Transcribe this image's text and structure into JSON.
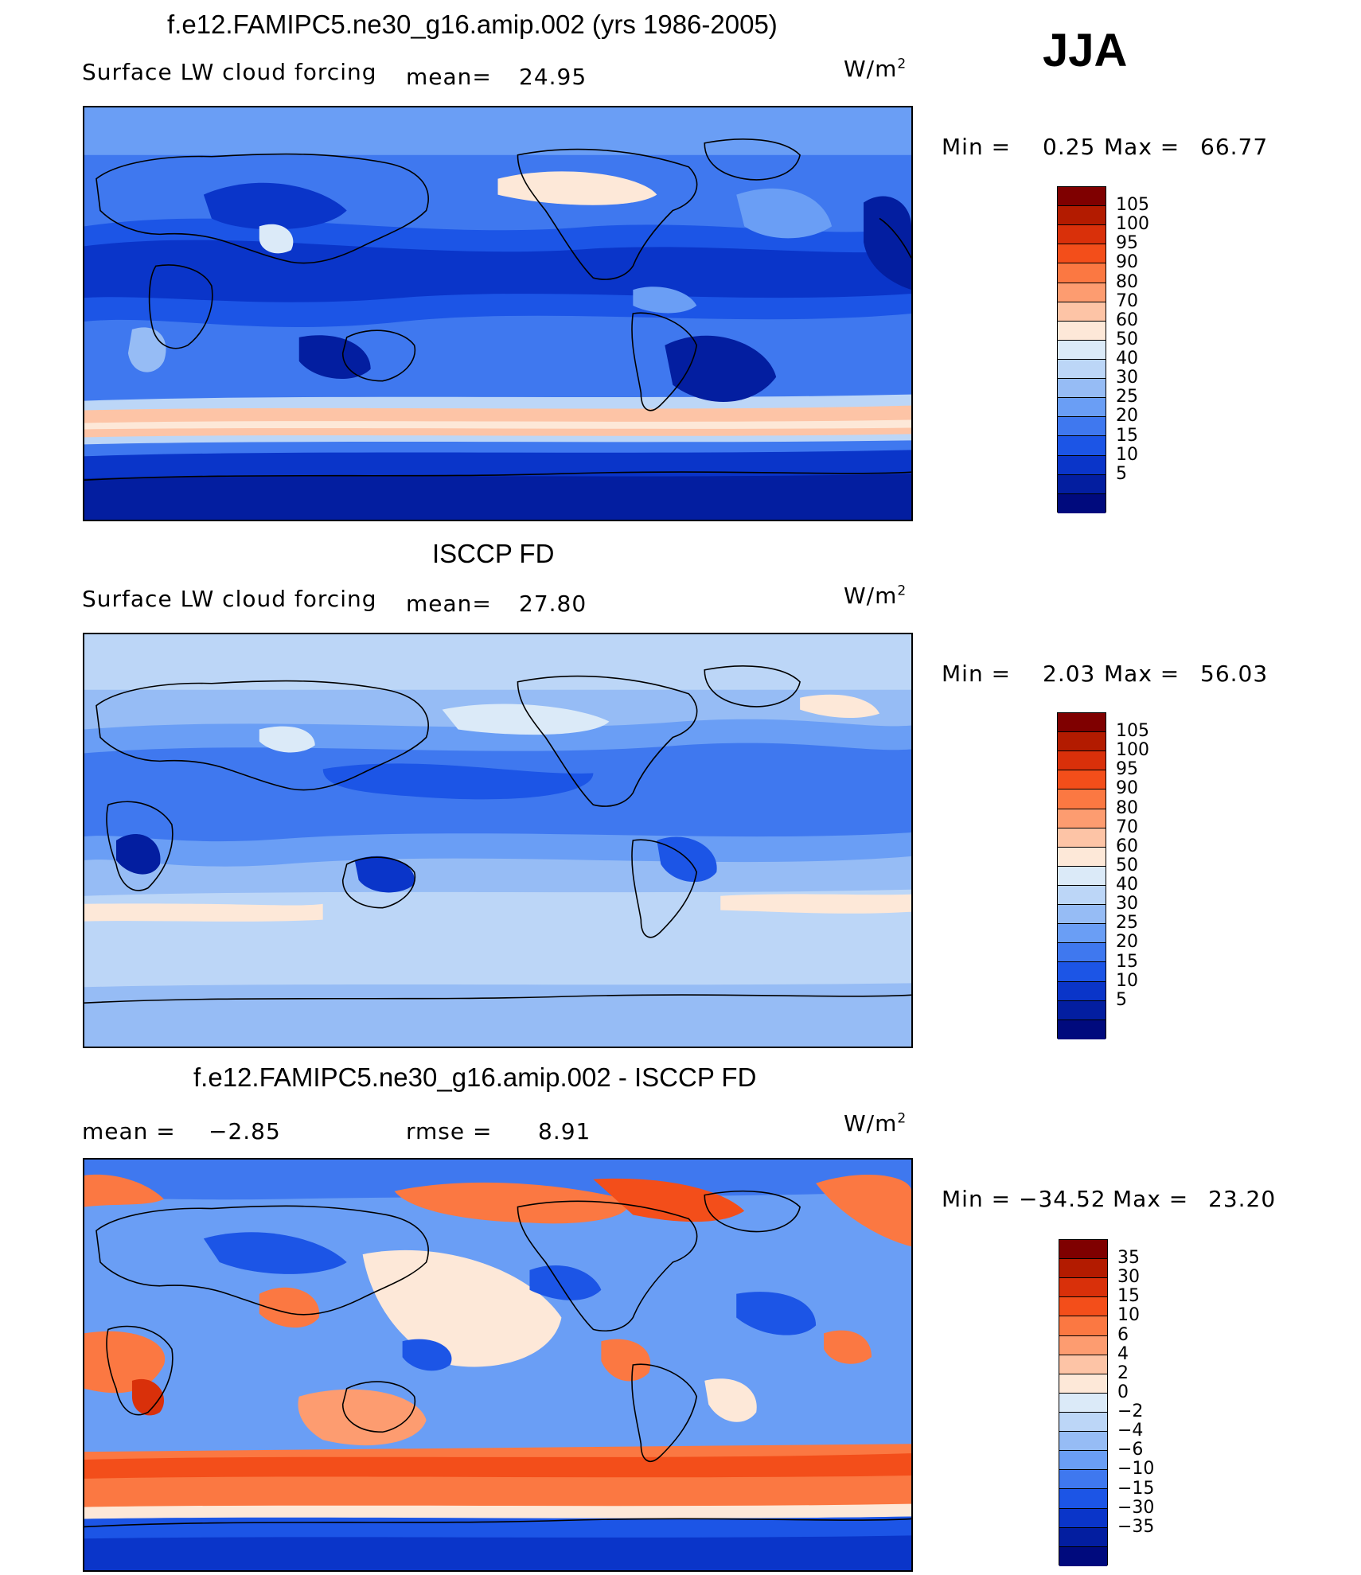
{
  "season": "JJA",
  "palette_main": [
    "#7f0000",
    "#b31b00",
    "#d9300a",
    "#f34e1a",
    "#fb7842",
    "#fd9c70",
    "#fdc4a6",
    "#fde8d8",
    "#dbeaf8",
    "#bcd6f7",
    "#96bcf5",
    "#6a9ef5",
    "#3f78ef",
    "#1c55e6",
    "#0a35c9",
    "#031ea0",
    "#000a7d"
  ],
  "palette_diff": [
    "#7f0000",
    "#b31b00",
    "#d9300a",
    "#f34e1a",
    "#fb7842",
    "#fd9c70",
    "#fdc4a6",
    "#fde8d8",
    "#dbeaf8",
    "#bcd6f7",
    "#96bcf5",
    "#6a9ef5",
    "#3f78ef",
    "#1c55e6",
    "#0a35c9",
    "#031ea0",
    "#000a7d"
  ],
  "panels": [
    {
      "title": "f.e12.FAMIPC5.ne30_g16.amip.002 (yrs 1986-2005)",
      "left_label": "Surface LW cloud forcing",
      "mid_label": "mean=",
      "mid_value": "24.95",
      "units": "W/m",
      "units_sup": "2",
      "min_label": "Min =",
      "min_value": "0.25",
      "max_label": "Max =",
      "max_value": "66.77",
      "levels": [
        "105",
        "100",
        "95",
        "90",
        "80",
        "70",
        "60",
        "50",
        "40",
        "30",
        "25",
        "20",
        "15",
        "10",
        "5"
      ]
    },
    {
      "title": "ISCCP FD",
      "left_label": "Surface LW cloud forcing",
      "mid_label": "mean=",
      "mid_value": "27.80",
      "units": "W/m",
      "units_sup": "2",
      "min_label": "Min =",
      "min_value": "2.03",
      "max_label": "Max =",
      "max_value": "56.03",
      "levels": [
        "105",
        "100",
        "95",
        "90",
        "80",
        "70",
        "60",
        "50",
        "40",
        "30",
        "25",
        "20",
        "15",
        "10",
        "5"
      ]
    },
    {
      "title": "f.e12.FAMIPC5.ne30_g16.amip.002 - ISCCP FD",
      "left_label": "mean =",
      "left_value": "−2.85",
      "mid_label": "rmse =",
      "mid_value": "8.91",
      "units": "W/m",
      "units_sup": "2",
      "min_label": "Min =",
      "min_value": "−34.52",
      "max_label": "Max =",
      "max_value": "23.20",
      "levels": [
        "35",
        "30",
        "15",
        "10",
        "6",
        "4",
        "2",
        "0",
        "−2",
        "−4",
        "−6",
        "−10",
        "−15",
        "−30",
        "−35"
      ]
    }
  ]
}
